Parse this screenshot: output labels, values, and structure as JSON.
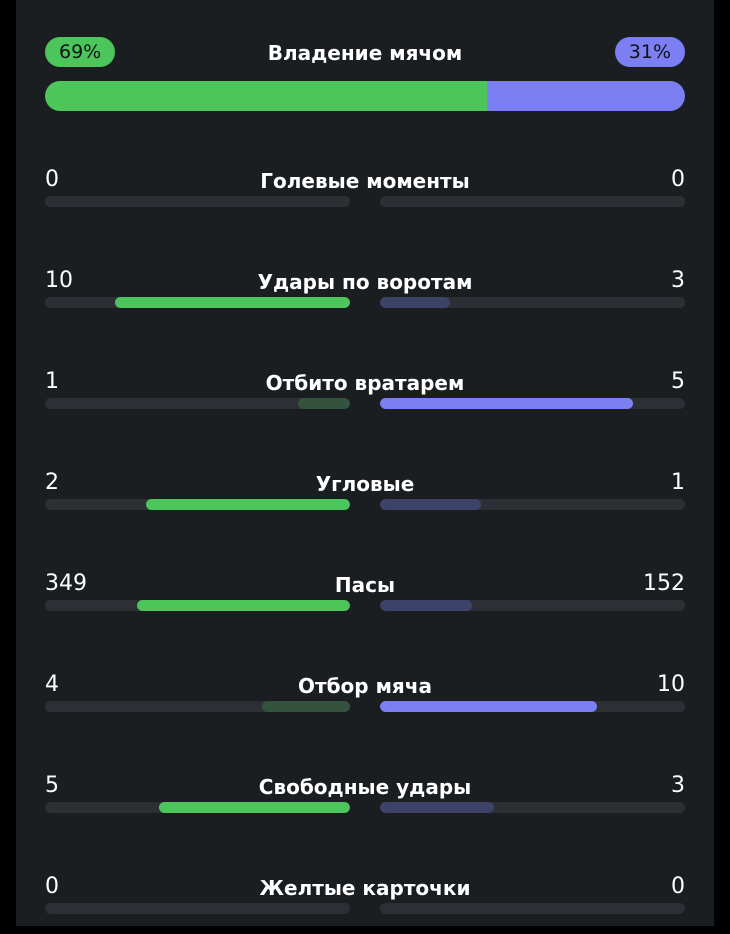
{
  "colors": {
    "home": "#4cc55a",
    "away": "#7b7ff3",
    "home_dim": "#33533e",
    "away_dim": "#3d4268",
    "track": "#2c3034",
    "panel": "#1b1e21"
  },
  "possession": {
    "title": "Владение мячом",
    "home_label": "69%",
    "away_label": "31%",
    "home_fraction": 0.69,
    "away_fraction": 0.31
  },
  "stats": [
    {
      "title": "Голевые моменты",
      "home": "0",
      "away": "0",
      "home_fill": 0,
      "away_fill": 0,
      "leader": "none"
    },
    {
      "title": "Удары по воротам",
      "home": "10",
      "away": "3",
      "home_fill": 0.77,
      "away_fill": 0.23,
      "leader": "home"
    },
    {
      "title": "Отбито вратарем",
      "home": "1",
      "away": "5",
      "home_fill": 0.17,
      "away_fill": 0.83,
      "leader": "away"
    },
    {
      "title": "Угловые",
      "home": "2",
      "away": "1",
      "home_fill": 0.67,
      "away_fill": 0.33,
      "leader": "home"
    },
    {
      "title": "Пасы",
      "home": "349",
      "away": "152",
      "home_fill": 0.7,
      "away_fill": 0.3,
      "leader": "home"
    },
    {
      "title": "Отбор мяча",
      "home": "4",
      "away": "10",
      "home_fill": 0.29,
      "away_fill": 0.71,
      "leader": "away"
    },
    {
      "title": "Свободные удары",
      "home": "5",
      "away": "3",
      "home_fill": 0.625,
      "away_fill": 0.375,
      "leader": "home"
    },
    {
      "title": "Желтые карточки",
      "home": "0",
      "away": "0",
      "home_fill": 0,
      "away_fill": 0,
      "leader": "none"
    }
  ]
}
